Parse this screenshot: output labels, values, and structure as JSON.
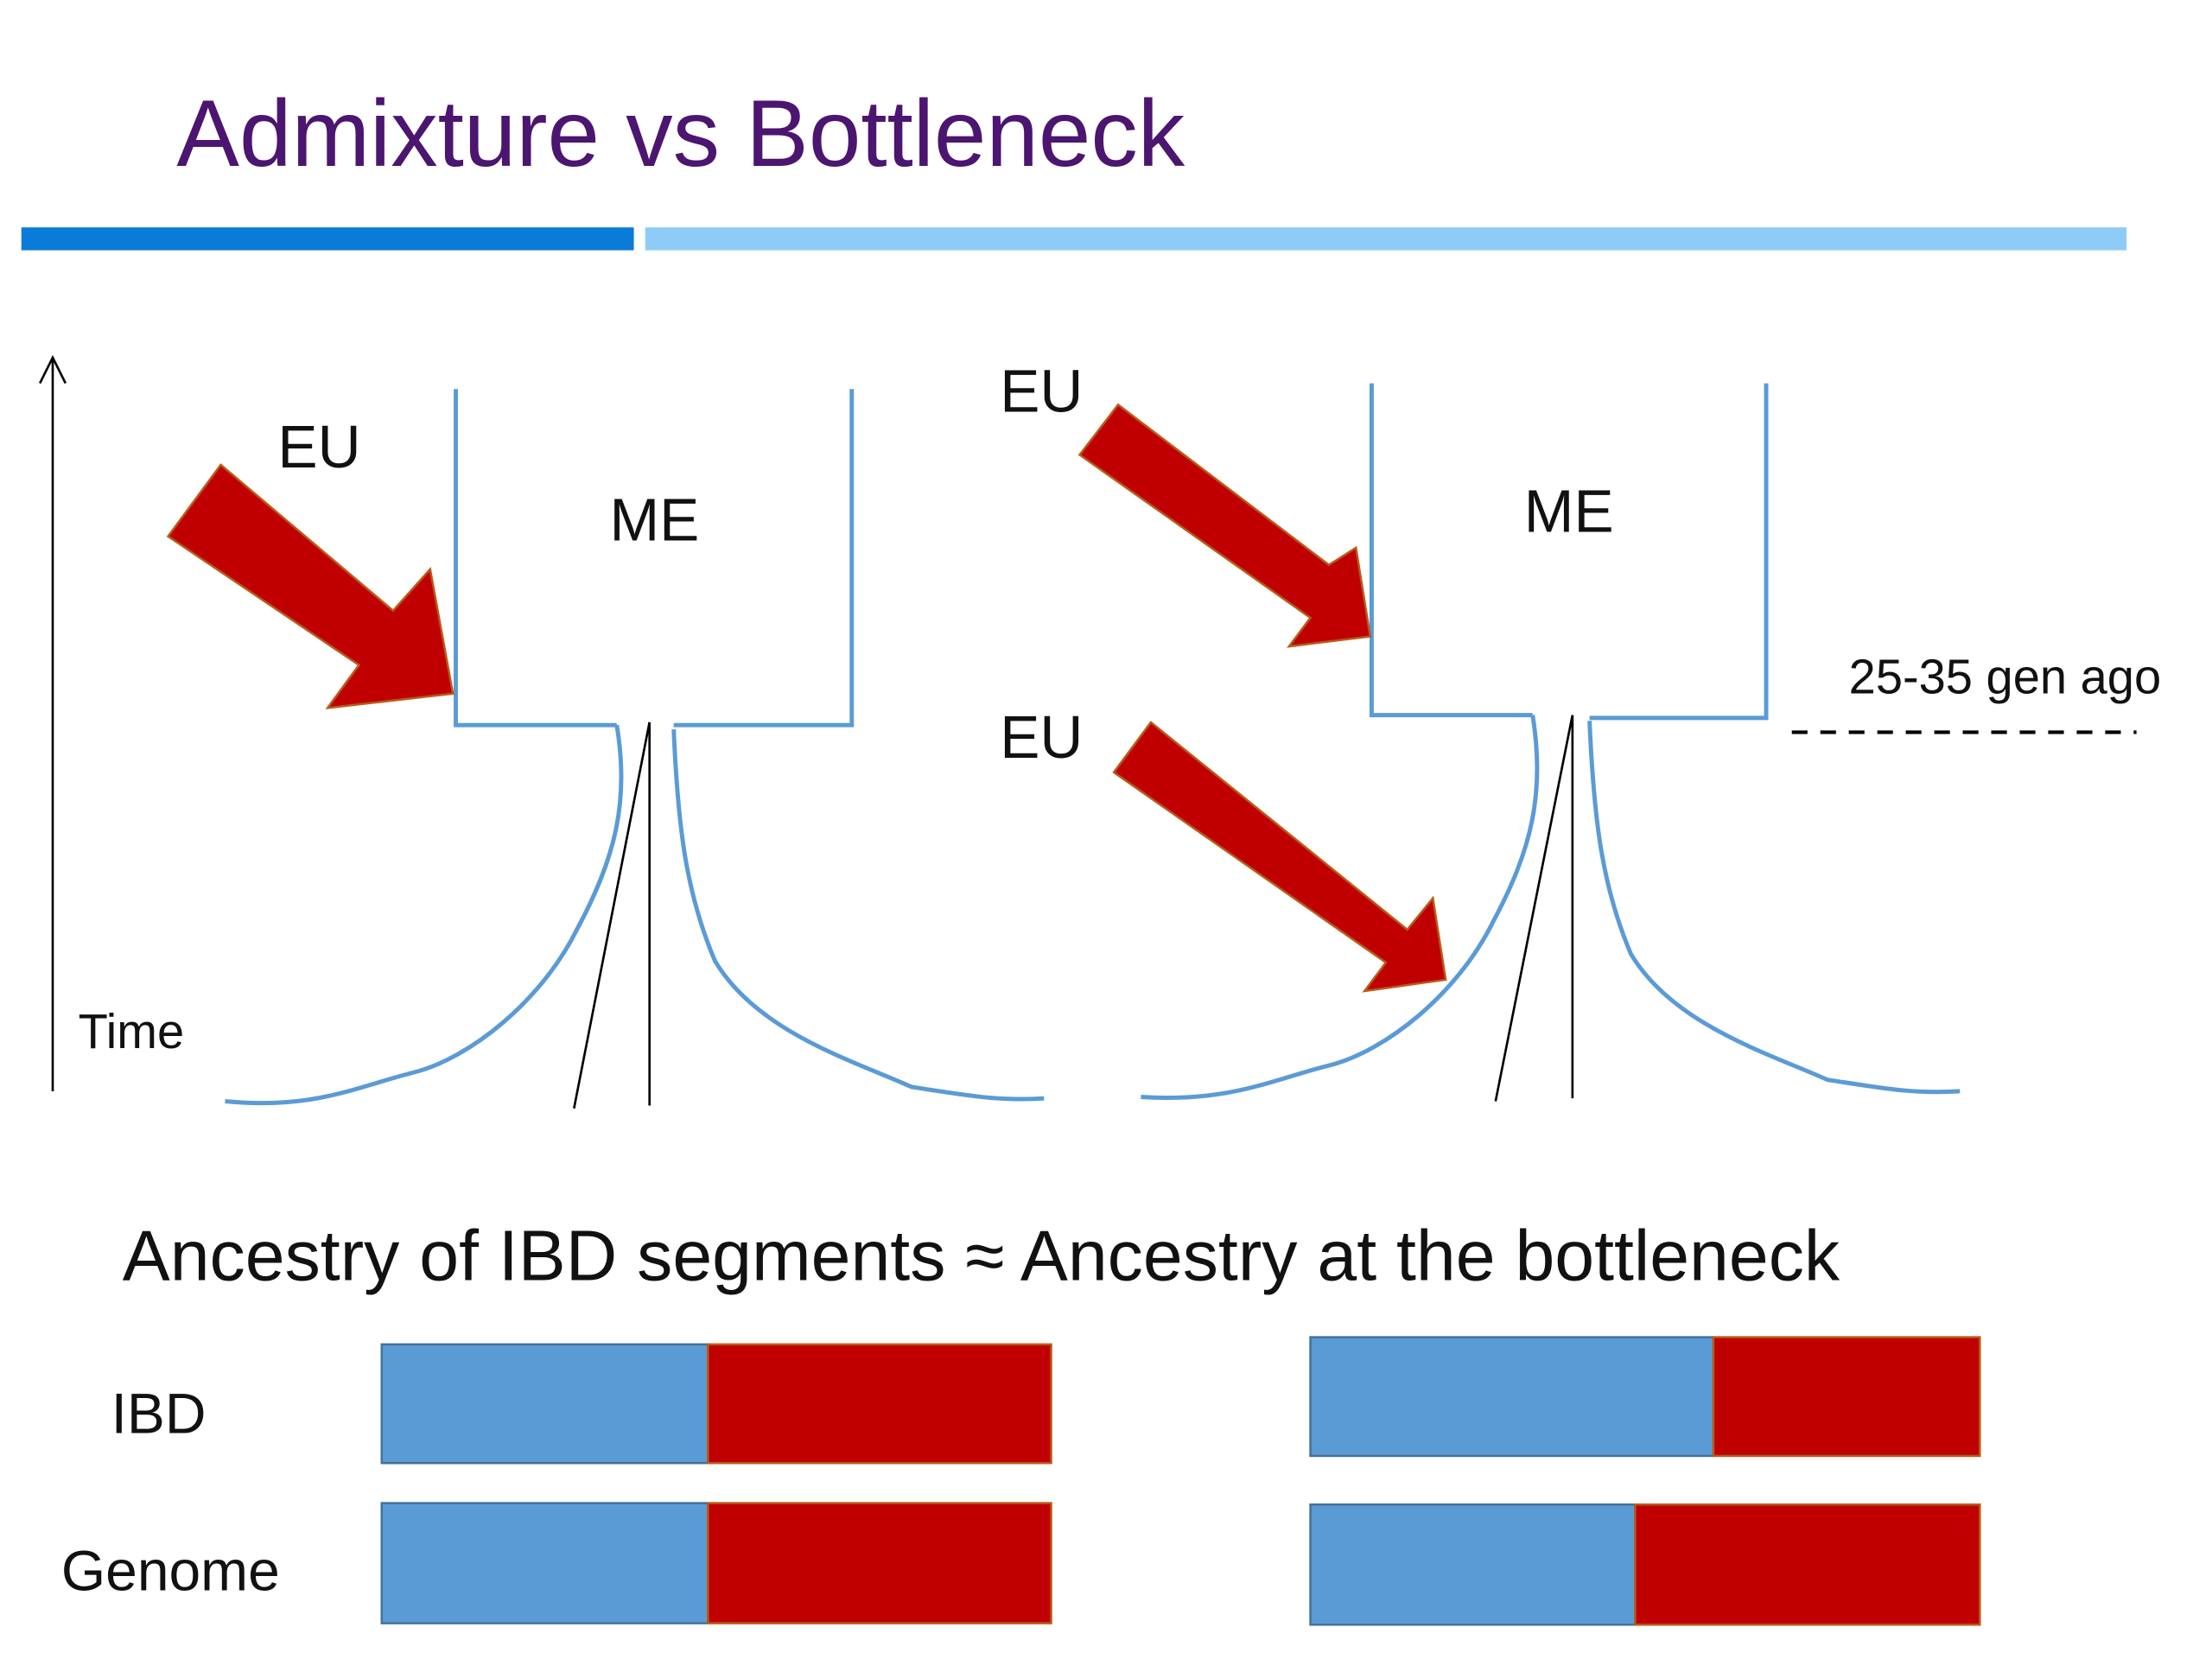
{
  "header": {
    "title": "Admixture vs Bottleneck"
  },
  "diagram": {
    "time_axis": "Time",
    "left": {
      "source": "EU",
      "target": "ME"
    },
    "right": {
      "sources": [
        "EU",
        "EU"
      ],
      "target": "ME",
      "annotation": "25-35 gen ago"
    }
  },
  "statement": "Ancestry of IBD segments ≈ Ancestry at the bottleneck",
  "bars": {
    "rows": [
      "IBD",
      "Genome"
    ]
  }
}
